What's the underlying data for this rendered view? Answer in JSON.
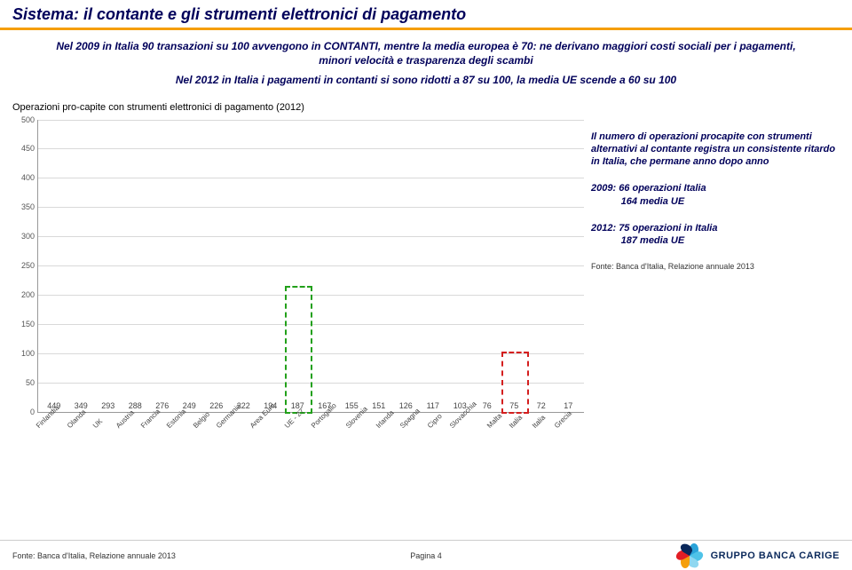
{
  "title": "Sistema: il contante e gli strumenti elettronici di pagamento",
  "intro": {
    "p1": "Nel 2009 in Italia 90 transazioni su 100 avvengono in CONTANTI, mentre la media europea è 70: ne derivano maggiori costi sociali per i pagamenti, minori velocità e trasparenza degli scambi",
    "p2": "Nel 2012 in Italia i pagamenti in contanti si sono ridotti a 87 su 100, la media UE scende a 60 su 100"
  },
  "subtitle": "Operazioni pro-capite con strumenti elettronici di pagamento (2012)",
  "chart": {
    "type": "bar",
    "y_max": 500,
    "y_step": 50,
    "bar_color": "#1f4e79",
    "grid_color": "#d9d9d9",
    "bars": [
      {
        "label": "Finlandia",
        "value": 449
      },
      {
        "label": "Olanda",
        "value": 349
      },
      {
        "label": "UK",
        "value": 293
      },
      {
        "label": "Austria",
        "value": 288
      },
      {
        "label": "Francia",
        "value": 276
      },
      {
        "label": "Estonia",
        "value": 249
      },
      {
        "label": "Belgio",
        "value": 226
      },
      {
        "label": "Germania",
        "value": 222
      },
      {
        "label": "Area Euro",
        "value": 194
      },
      {
        "label": "UE - 27",
        "value": 187
      },
      {
        "label": "Portogallo",
        "value": 167
      },
      {
        "label": "Slovenia",
        "value": 155
      },
      {
        "label": "Irlanda",
        "value": 151
      },
      {
        "label": "Spagna",
        "value": 126
      },
      {
        "label": "Cipro",
        "value": 117
      },
      {
        "label": "Slovacchia",
        "value": 103
      },
      {
        "label": "Malta",
        "value": 76
      },
      {
        "label": "Italia",
        "value": 75
      },
      {
        "label": "Italia",
        "value": 72
      },
      {
        "label": "Grecia",
        "value": 17
      }
    ],
    "highlight_green_idx": 9,
    "highlight_red_idx": 17
  },
  "notes": {
    "n1": "Il numero di operazioni procapite con strumenti alternativi al contante registra un consistente ritardo in Italia, che permane anno dopo anno",
    "n2a": "2009: 66 operazioni Italia",
    "n2b": "164 media UE",
    "n3a": "2012:  75 operazioni in Italia",
    "n3b": "187 media UE",
    "source": "Fonte: Banca d'Italia, Relazione annuale 2013"
  },
  "footer": {
    "source": "Fonte: Banca d'Italia, Relazione annuale 2013",
    "page": "Pagina 4",
    "brand": "GRUPPO BANCA CARIGE",
    "petal_colors": [
      "#2aa3d9",
      "#4fc3e8",
      "#8fd7f0",
      "#f59e0b",
      "#e21e25",
      "#0a285a"
    ]
  }
}
